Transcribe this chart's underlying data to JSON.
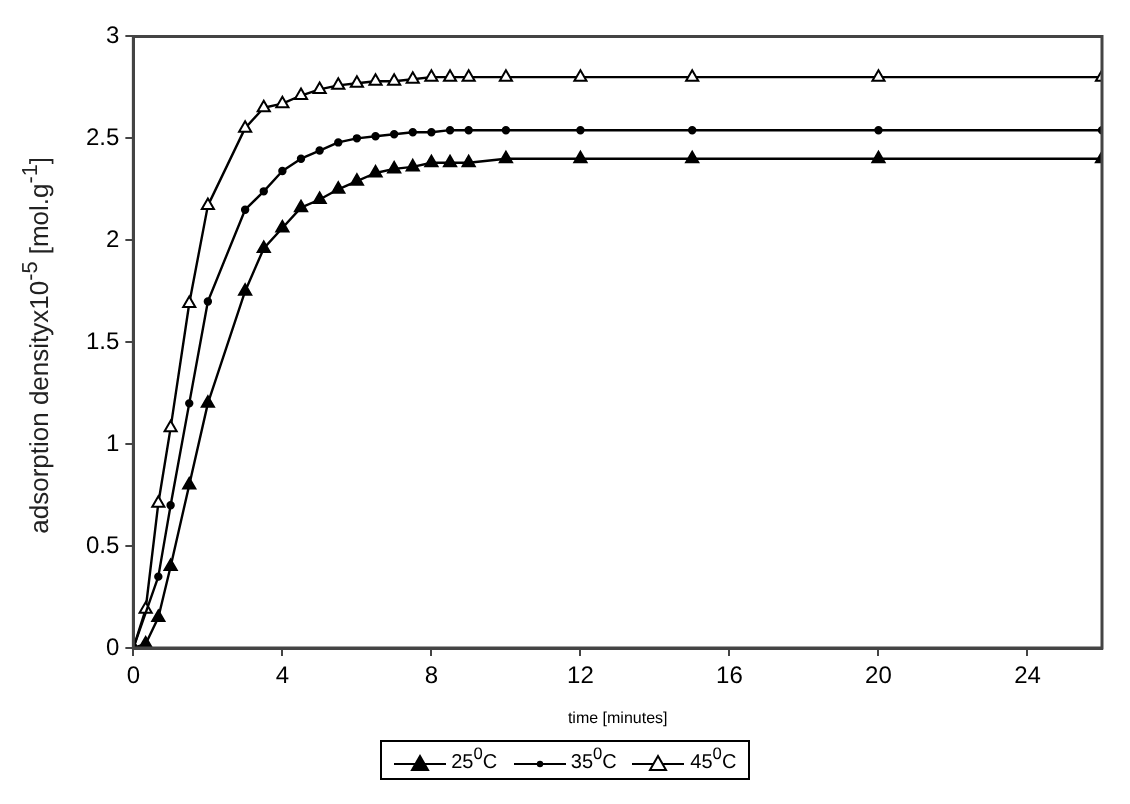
{
  "chart_data": {
    "type": "line",
    "xlabel": "time [minutes]",
    "ylabel": "adsorption densityx10$^{-5}$  [mol.g$^{-1}$]",
    "x": [
      0,
      0.33,
      0.67,
      1,
      1.5,
      2,
      3,
      3.5,
      4,
      4.5,
      5,
      5.5,
      6,
      6.5,
      7,
      7.5,
      8,
      8.5,
      9,
      10,
      12,
      15,
      20,
      26
    ],
    "series": [
      {
        "name": "25$^{0}$C",
        "color": "#000000",
        "marker": "triangle",
        "values": [
          0,
          0.02,
          0.15,
          0.4,
          0.8,
          1.2,
          1.75,
          1.96,
          2.06,
          2.16,
          2.2,
          2.25,
          2.29,
          2.33,
          2.35,
          2.36,
          2.38,
          2.38,
          2.38,
          2.4,
          2.4,
          2.4,
          2.4,
          2.4
        ]
      },
      {
        "name": "35$^{0}$C",
        "color": "#000000",
        "marker": "circle",
        "values": [
          0,
          null,
          0.35,
          0.7,
          1.2,
          1.7,
          2.15,
          2.24,
          2.34,
          2.4,
          2.44,
          2.48,
          2.5,
          2.51,
          2.52,
          2.53,
          2.53,
          2.54,
          2.54,
          2.54,
          2.54,
          2.54,
          2.54,
          2.54
        ]
      },
      {
        "name": "45$^{0}$C",
        "color": "#000000",
        "marker": "triangle",
        "values": [
          0,
          0.19,
          0.71,
          1.08,
          1.69,
          2.17,
          2.55,
          2.65,
          2.67,
          2.71,
          2.74,
          2.76,
          2.77,
          2.78,
          2.78,
          2.79,
          2.8,
          2.8,
          2.8,
          2.8,
          2.8,
          2.8,
          2.8,
          2.8
        ]
      }
    ],
    "xlim": [
      0,
      26
    ],
    "xticks": [
      0,
      4,
      8,
      12,
      16,
      20,
      24
    ],
    "ylim": [
      0,
      3
    ],
    "yticks": [
      0,
      0.5,
      1,
      1.5,
      2,
      2.5,
      3
    ],
    "grid": false,
    "legend": "bottom",
    "line_style": "solid"
  }
}
